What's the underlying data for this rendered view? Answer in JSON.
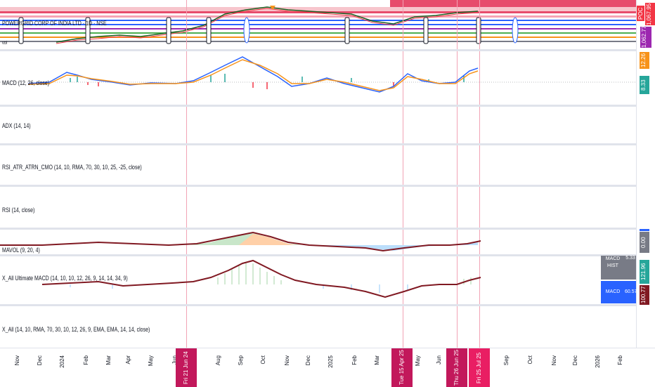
{
  "main_pane": {
    "symbol_title": "POWERGRID CORP OF INDIA LTD · 1D · NSE",
    "label_f": "F",
    "label_g": "G",
    "label_e": "E",
    "price_tag_poc": "POC",
    "price_tag_1": "1,067.95",
    "price_tag_2": "1,062.77",
    "left_mark": "vol"
  },
  "panes": [
    {
      "id": "macd",
      "title": "MACD (12, 26, close)"
    },
    {
      "id": "adx",
      "title": "ADX (14, 14)"
    },
    {
      "id": "rsi_atr",
      "title": "RSI_ATR_ATRN_CMO (14, 10, RMA, 70, 30, 10, 25, -25, close)"
    },
    {
      "id": "rsi",
      "title": "RSI (14, close)"
    },
    {
      "id": "mavol",
      "title": "MAVOL (9, 20, 4)"
    },
    {
      "id": "ultimate",
      "title": "X_All Ultimate MACD (14, 10, 10, 12, 26, 9, 14, 14, 34, 9)"
    },
    {
      "id": "xall",
      "title": "X_All (14, 10, RMA, 70, 30, 10, 12, 26, 9, EMA, EMA, 14, 14, close)"
    }
  ],
  "scale_tags": {
    "macd_1": "12.26",
    "macd_2": "8.33",
    "mavol": "0.00",
    "ult_1": "121.96",
    "ult_2": "100.77"
  },
  "table": {
    "h1": "MACD HIST",
    "h2": "5.33",
    "r1": "MACD",
    "r2": "60.57"
  },
  "time_axis": {
    "ticks": [
      "Nov",
      "Dec",
      "2024",
      "Feb",
      "Mar",
      "Apr",
      "May",
      "Jun",
      "Aug",
      "Sep",
      "Oct",
      "Nov",
      "Dec",
      "2025",
      "Feb",
      "Mar",
      "May",
      "Jun",
      "Sep",
      "Oct",
      "Nov",
      "Dec",
      "2026",
      "Feb"
    ],
    "highlights": [
      "Fri 21 Jun 24",
      "Tue 15 Apr 25",
      "Thu 26 Jun 25",
      "Fri 25 Jul 25"
    ]
  },
  "colors": {
    "red": "#f23645",
    "blue": "#2962ff",
    "orange": "#f7931a",
    "teal": "#26a69a",
    "purple": "#9c27b0",
    "maroon": "#801922",
    "gray": "#787b86",
    "magenta": "#c2185b"
  }
}
